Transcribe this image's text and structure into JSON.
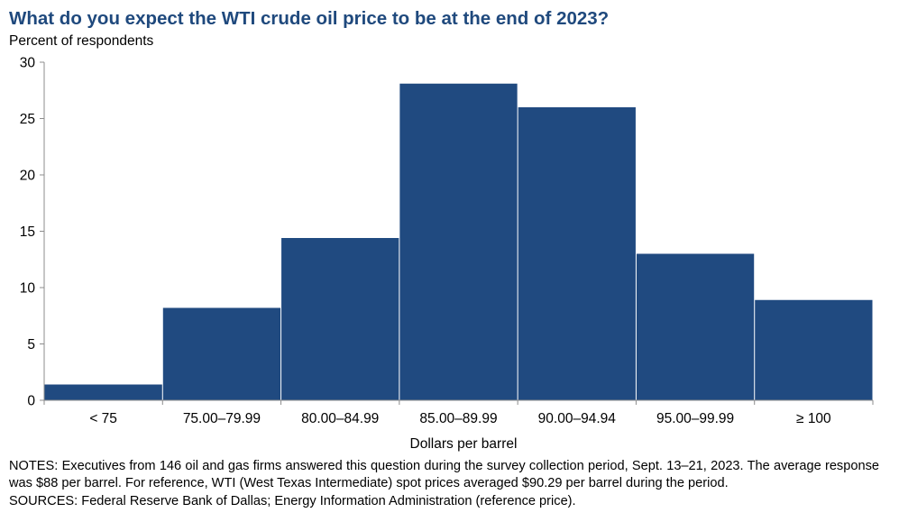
{
  "chart_data": {
    "type": "bar",
    "title": "What do you expect the WTI crude oil price to be at the end of 2023?",
    "ylabel": "Percent of respondents",
    "xlabel": "Dollars per barrel",
    "categories": [
      "< 75",
      "75.00–79.99",
      "80.00–84.99",
      "85.00–89.99",
      "90.00–94.94",
      "95.00–99.99",
      "≥ 100"
    ],
    "values": [
      1.4,
      8.2,
      14.4,
      28.1,
      26.0,
      13.0,
      8.9
    ],
    "ylim": [
      0,
      30
    ],
    "yticks": [
      0,
      5,
      10,
      15,
      20,
      25,
      30
    ],
    "bar_color": "#204a80",
    "grid": false,
    "legend": "none"
  },
  "notes": {
    "notes_text": "NOTES: Executives from 146 oil and gas firms answered this question during the survey collection period, Sept. 13–21, 2023. The average response was $88 per barrel. For reference, WTI (West Texas Intermediate) spot prices averaged $90.29 per barrel during the period.",
    "sources_text": "SOURCES: Federal Reserve Bank of Dallas; Energy Information Administration (reference price)."
  }
}
